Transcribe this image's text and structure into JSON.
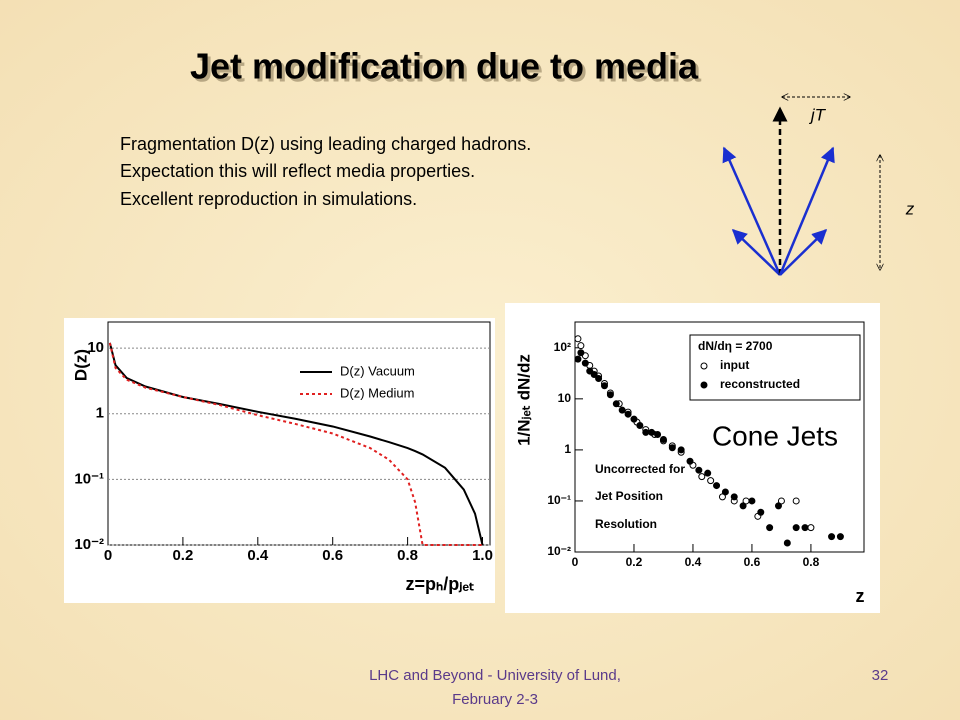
{
  "slide": {
    "title": "Jet modification due to media",
    "bullets": [
      "Fragmentation D(z) using leading charged hadrons.",
      "Expectation this will reflect media properties.",
      "Excellent reproduction in simulations."
    ],
    "footer": [
      "LHC and Beyond - University of Lund,",
      "February 2-3"
    ],
    "page_number": "32",
    "diagram": {
      "jt_label": "jT",
      "z_label": "z"
    }
  },
  "chart_data": [
    {
      "type": "line",
      "yscale": "log",
      "grid": true,
      "ylabel": "D(z)",
      "xlabel": "z=pₕ/pⱼₑₜ",
      "x": [
        0.005,
        0.02,
        0.05,
        0.1,
        0.2,
        0.3,
        0.4,
        0.5,
        0.6,
        0.7,
        0.75,
        0.8,
        0.82,
        0.84,
        0.9,
        0.95,
        0.98,
        1.0
      ],
      "series": [
        {
          "name": "D(z) Vacuum",
          "color": "#000000",
          "line_style": "solid",
          "values": [
            12,
            5.5,
            3.5,
            2.6,
            1.8,
            1.4,
            1.07,
            0.84,
            0.64,
            0.45,
            0.37,
            0.3,
            0.27,
            0.24,
            0.15,
            0.07,
            0.03,
            0.01
          ]
        },
        {
          "name": "D(z) Medium",
          "color": "#e02020",
          "line_style": "dotted",
          "values": [
            12,
            5,
            3.3,
            2.5,
            1.8,
            1.35,
            0.95,
            0.7,
            0.5,
            0.3,
            0.2,
            0.1,
            0.045,
            0.01,
            0.01,
            0.01,
            0.01,
            0.01
          ]
        }
      ],
      "xlim": [
        0,
        1.02
      ],
      "ylim": [
        0.01,
        25
      ],
      "xticks": [
        0,
        0.2,
        0.4,
        0.6,
        0.8,
        {
          "value": 1,
          "label": "1.0"
        }
      ],
      "yticks": [
        {
          "value": 0.01,
          "label": "10⁻²"
        },
        {
          "value": 0.1,
          "label": "10⁻¹"
        },
        1,
        10
      ]
    },
    {
      "type": "scatter",
      "yscale": "log",
      "grid": false,
      "ylabel": "1/Nⱼₑₜ dN/dz",
      "xlabel": "z",
      "legend_title": "dN/dη = 2700",
      "annotations": [
        "Cone Jets",
        "Uncorrected for",
        "Jet Position",
        "Resolution"
      ],
      "series": [
        {
          "name": "input",
          "color": "#000000",
          "marker": "open",
          "x": [
            0.01,
            0.02,
            0.035,
            0.05,
            0.065,
            0.08,
            0.1,
            0.12,
            0.15,
            0.18,
            0.21,
            0.24,
            0.27,
            0.3,
            0.33,
            0.36,
            0.4,
            0.43,
            0.46,
            0.5,
            0.54,
            0.58,
            0.62,
            0.7,
            0.75,
            0.8
          ],
          "values": [
            150,
            110,
            70,
            45,
            35,
            28,
            20,
            13,
            8,
            5.5,
            3.5,
            2.5,
            2,
            1.5,
            1.2,
            0.9,
            0.5,
            0.3,
            0.25,
            0.12,
            0.1,
            0.1,
            0.05,
            0.1,
            0.1,
            0.03
          ]
        },
        {
          "name": "reconstructed",
          "color": "#000000",
          "marker": "filled",
          "x": [
            0.01,
            0.02,
            0.035,
            0.05,
            0.065,
            0.08,
            0.1,
            0.12,
            0.14,
            0.16,
            0.18,
            0.2,
            0.22,
            0.24,
            0.26,
            0.28,
            0.3,
            0.33,
            0.36,
            0.39,
            0.42,
            0.45,
            0.48,
            0.51,
            0.54,
            0.57,
            0.6,
            0.63,
            0.66,
            0.69,
            0.72,
            0.75,
            0.78,
            0.87,
            0.9
          ],
          "values": [
            60,
            80,
            50,
            35,
            30,
            25,
            18,
            12,
            8,
            6,
            5,
            4,
            3,
            2.2,
            2.2,
            2,
            1.6,
            1.1,
            1,
            0.6,
            0.4,
            0.35,
            0.2,
            0.15,
            0.12,
            0.08,
            0.1,
            0.06,
            0.03,
            0.08,
            0.015,
            0.03,
            0.03,
            0.02,
            0.02
          ]
        }
      ],
      "xlim": [
        0,
        0.98
      ],
      "ylim": [
        0.01,
        320
      ],
      "xticks": [
        0,
        0.2,
        0.4,
        0.6,
        0.8
      ],
      "yticks": [
        {
          "value": 0.01,
          "label": "10⁻²"
        },
        {
          "value": 0.1,
          "label": "10⁻¹"
        },
        1,
        10,
        {
          "value": 100,
          "label": "10²"
        }
      ]
    }
  ]
}
